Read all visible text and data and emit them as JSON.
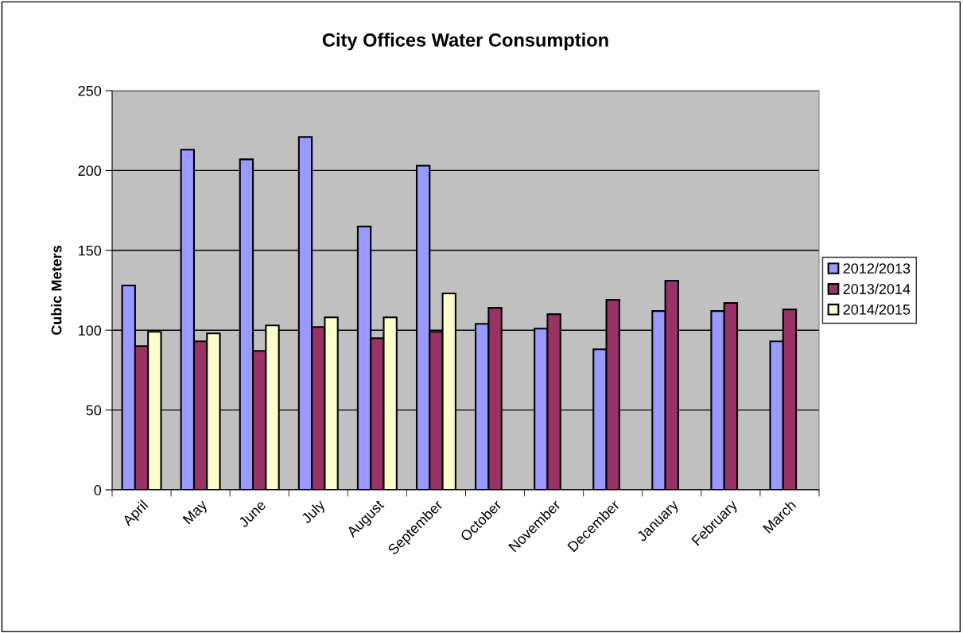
{
  "chart_data": {
    "type": "bar",
    "title": "City Offices Water Consumption",
    "ylabel": "Cubic Meters",
    "categories": [
      "April",
      "May",
      "June",
      "July",
      "August",
      "September",
      "October",
      "November",
      "December",
      "January",
      "February",
      "March"
    ],
    "series": [
      {
        "name": "2012/2013",
        "color": "#9999ff",
        "values": [
          128,
          213,
          207,
          221,
          165,
          203,
          104,
          101,
          88,
          112,
          112,
          93
        ]
      },
      {
        "name": "2013/2014",
        "color": "#993366",
        "values": [
          90,
          93,
          87,
          102,
          95,
          99,
          114,
          110,
          119,
          131,
          117,
          113
        ]
      },
      {
        "name": "2014/2015",
        "color": "#ffffcc",
        "values": [
          99,
          98,
          103,
          108,
          108,
          123,
          null,
          null,
          null,
          null,
          null,
          null
        ]
      }
    ],
    "ylim": [
      0,
      250
    ],
    "yticks": [
      0,
      50,
      100,
      150,
      200,
      250
    ],
    "grid": "y",
    "legend": "right"
  }
}
